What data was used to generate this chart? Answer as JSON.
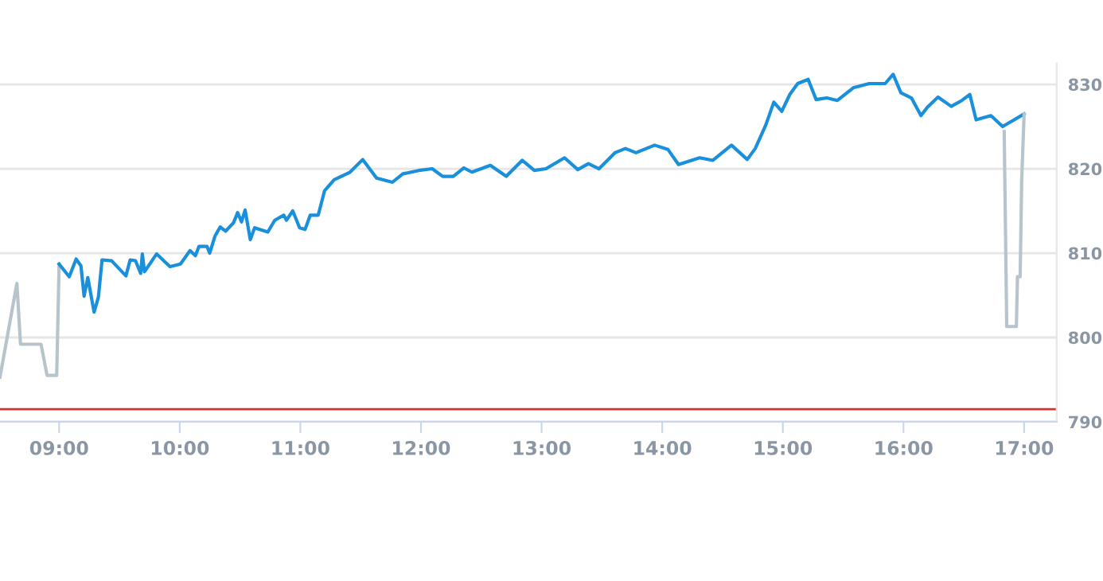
{
  "chart_data": {
    "type": "line",
    "series": [
      {
        "color": "#b8c4cc",
        "x": [
          8.51,
          8.65,
          8.68,
          8.85,
          8.9,
          8.98,
          9.0
        ],
        "values": [
          795.3,
          806.4,
          799.2,
          799.2,
          795.5,
          795.5,
          808.7
        ]
      },
      {
        "color": "#1a8fdc",
        "x": [
          9.0,
          9.084,
          9.141,
          9.181,
          9.207,
          9.238,
          9.29,
          9.326,
          9.356,
          9.435,
          9.554,
          9.589,
          9.633,
          9.676,
          9.69,
          9.708,
          9.808,
          9.919,
          10.006,
          10.085,
          10.13,
          10.16,
          10.226,
          10.248,
          10.292,
          10.335,
          10.38,
          10.446,
          10.48,
          10.512,
          10.542,
          10.585,
          10.621,
          10.73,
          10.788,
          10.862,
          10.885,
          10.937,
          10.994,
          11.039,
          11.082,
          11.148,
          11.201,
          11.28,
          11.412,
          11.517,
          11.632,
          11.763,
          11.85,
          11.982,
          12.093,
          12.18,
          12.268,
          12.356,
          12.422,
          12.575,
          12.707,
          12.839,
          12.94,
          13.036,
          13.19,
          13.3,
          13.388,
          13.476,
          13.608,
          13.695,
          13.783,
          13.937,
          14.047,
          14.135,
          14.31,
          14.42,
          14.574,
          14.705,
          14.771,
          14.859,
          14.925,
          14.991,
          15.057,
          15.123,
          15.21,
          15.276,
          15.364,
          15.452,
          15.584,
          15.716,
          15.848,
          15.914,
          15.979,
          16.066,
          16.145,
          16.198,
          16.286,
          16.396,
          16.484,
          16.55,
          16.602,
          16.725,
          16.822,
          17.0
        ],
        "values": [
          808.7,
          807.2,
          809.3,
          808.5,
          804.9,
          807.1,
          803.0,
          804.8,
          809.2,
          809.1,
          807.3,
          809.2,
          809.1,
          807.6,
          809.9,
          807.8,
          809.9,
          808.4,
          808.7,
          810.3,
          809.7,
          810.8,
          810.8,
          810.0,
          812.0,
          813.1,
          812.6,
          813.6,
          814.8,
          813.7,
          815.1,
          811.6,
          813.0,
          812.5,
          813.9,
          814.5,
          813.9,
          815.0,
          813.0,
          812.8,
          814.5,
          814.5,
          817.4,
          818.7,
          819.6,
          821.1,
          818.9,
          818.4,
          819.4,
          819.8,
          820.0,
          819.1,
          819.1,
          820.1,
          819.6,
          820.4,
          819.1,
          821.0,
          819.8,
          820.0,
          821.3,
          819.9,
          820.6,
          820.0,
          821.9,
          822.4,
          821.9,
          822.8,
          822.3,
          820.5,
          821.3,
          821.0,
          822.8,
          821.1,
          822.4,
          825.2,
          827.9,
          826.8,
          828.8,
          830.1,
          830.6,
          828.2,
          828.4,
          828.1,
          829.6,
          830.1,
          830.1,
          831.2,
          829.0,
          828.4,
          826.3,
          827.3,
          828.5,
          827.4,
          828.1,
          828.8,
          825.8,
          826.3,
          825.0,
          826.5
        ]
      },
      {
        "color": "#b8c4cc",
        "x": [
          16.835,
          16.856,
          16.936,
          16.945,
          16.967,
          16.98,
          17.0
        ],
        "values": [
          824.4,
          801.3,
          801.3,
          807.2,
          807.2,
          818.6,
          826.5
        ]
      }
    ],
    "xlim": [
      8.51,
      17.27
    ],
    "xticks": [
      {
        "value": 9,
        "label": "09:00"
      },
      {
        "value": 10,
        "label": "10:00"
      },
      {
        "value": 11,
        "label": "11:00"
      },
      {
        "value": 12,
        "label": "12:00"
      },
      {
        "value": 13,
        "label": "13:00"
      },
      {
        "value": 14,
        "label": "14:00"
      },
      {
        "value": 15,
        "label": "15:00"
      },
      {
        "value": 16,
        "label": "16:00"
      },
      {
        "value": 17,
        "label": "17:00"
      }
    ],
    "ylim": [
      790,
      832.5
    ],
    "yticks": [
      790,
      800,
      810,
      820,
      830
    ],
    "grid": "y",
    "ref_lines": [
      {
        "axis": "y",
        "value": 791.5,
        "color": "#d9322c"
      }
    ]
  }
}
